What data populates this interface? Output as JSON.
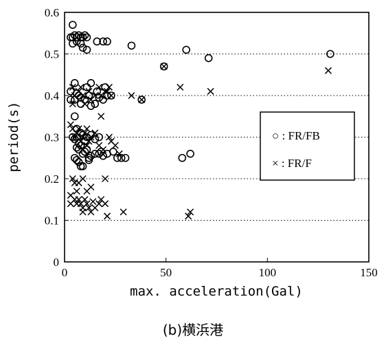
{
  "caption": "(b)横浜港",
  "chart_data": {
    "type": "scatter",
    "xlabel": "max. acceleration(Gal)",
    "ylabel": "period(s)",
    "xlim": [
      0,
      150
    ],
    "ylim": [
      0,
      0.6
    ],
    "xticks": [
      "0",
      "50",
      "100",
      "150"
    ],
    "yticks": [
      "0",
      "0.1",
      "0.2",
      "0.3",
      "0.4",
      "0.5",
      "0.6"
    ],
    "grid": "horizontal dotted at 0.1, 0.2, 0.3, 0.4, 0.5",
    "legend_position": "right",
    "series": [
      {
        "name": "○ : FR/FB",
        "marker": "circle",
        "points": [
          [
            4,
            0.57
          ],
          [
            3,
            0.54
          ],
          [
            4,
            0.54
          ],
          [
            5,
            0.545
          ],
          [
            6,
            0.54
          ],
          [
            7,
            0.545
          ],
          [
            8,
            0.54
          ],
          [
            9,
            0.54
          ],
          [
            10,
            0.545
          ],
          [
            11,
            0.54
          ],
          [
            4,
            0.525
          ],
          [
            6,
            0.53
          ],
          [
            8,
            0.525
          ],
          [
            9,
            0.515
          ],
          [
            11,
            0.51
          ],
          [
            16,
            0.53
          ],
          [
            19,
            0.53
          ],
          [
            21,
            0.53
          ],
          [
            33,
            0.52
          ],
          [
            49,
            0.47
          ],
          [
            60,
            0.51
          ],
          [
            71,
            0.49
          ],
          [
            131,
            0.5
          ],
          [
            5,
            0.43
          ],
          [
            3,
            0.41
          ],
          [
            3,
            0.39
          ],
          [
            5,
            0.39
          ],
          [
            6,
            0.405
          ],
          [
            7,
            0.4
          ],
          [
            8,
            0.395
          ],
          [
            8,
            0.38
          ],
          [
            10,
            0.39
          ],
          [
            11,
            0.42
          ],
          [
            13,
            0.43
          ],
          [
            12,
            0.4
          ],
          [
            13,
            0.375
          ],
          [
            15,
            0.38
          ],
          [
            16,
            0.41
          ],
          [
            17,
            0.395
          ],
          [
            19,
            0.39
          ],
          [
            21,
            0.4
          ],
          [
            23,
            0.4
          ],
          [
            20,
            0.42
          ],
          [
            38,
            0.39
          ],
          [
            5,
            0.35
          ],
          [
            6,
            0.32
          ],
          [
            4,
            0.3
          ],
          [
            5,
            0.295
          ],
          [
            6,
            0.3
          ],
          [
            7,
            0.285
          ],
          [
            8,
            0.31
          ],
          [
            9,
            0.305
          ],
          [
            10,
            0.29
          ],
          [
            11,
            0.3
          ],
          [
            13,
            0.305
          ],
          [
            15,
            0.295
          ],
          [
            17,
            0.3
          ],
          [
            6,
            0.275
          ],
          [
            7,
            0.27
          ],
          [
            8,
            0.28
          ],
          [
            9,
            0.26
          ],
          [
            10,
            0.265
          ],
          [
            11,
            0.27
          ],
          [
            12,
            0.25
          ],
          [
            13,
            0.255
          ],
          [
            15,
            0.26
          ],
          [
            17,
            0.26
          ],
          [
            18,
            0.265
          ],
          [
            19,
            0.255
          ],
          [
            21,
            0.26
          ],
          [
            24,
            0.265
          ],
          [
            26,
            0.25
          ],
          [
            28,
            0.25
          ],
          [
            30,
            0.25
          ],
          [
            5,
            0.25
          ],
          [
            6,
            0.245
          ],
          [
            7,
            0.24
          ],
          [
            8,
            0.23
          ],
          [
            9,
            0.23
          ],
          [
            12,
            0.245
          ],
          [
            58,
            0.25
          ],
          [
            62,
            0.26
          ]
        ]
      },
      {
        "name": "× : FR/F",
        "marker": "x",
        "points": [
          [
            130,
            0.46
          ],
          [
            57,
            0.42
          ],
          [
            72,
            0.41
          ],
          [
            49,
            0.47
          ],
          [
            33,
            0.4
          ],
          [
            38,
            0.39
          ],
          [
            4,
            0.42
          ],
          [
            5,
            0.4
          ],
          [
            7,
            0.41
          ],
          [
            8,
            0.42
          ],
          [
            9,
            0.4
          ],
          [
            10,
            0.38
          ],
          [
            12,
            0.41
          ],
          [
            13,
            0.39
          ],
          [
            15,
            0.4
          ],
          [
            17,
            0.42
          ],
          [
            18,
            0.4
          ],
          [
            20,
            0.41
          ],
          [
            22,
            0.42
          ],
          [
            23,
            0.4
          ],
          [
            21,
            0.41
          ],
          [
            18,
            0.35
          ],
          [
            4,
            0.38
          ],
          [
            3,
            0.33
          ],
          [
            4,
            0.32
          ],
          [
            5,
            0.3
          ],
          [
            6,
            0.31
          ],
          [
            7,
            0.32
          ],
          [
            8,
            0.29
          ],
          [
            9,
            0.3
          ],
          [
            10,
            0.31
          ],
          [
            11,
            0.32
          ],
          [
            12,
            0.29
          ],
          [
            13,
            0.3
          ],
          [
            15,
            0.31
          ],
          [
            17,
            0.28
          ],
          [
            19,
            0.27
          ],
          [
            22,
            0.3
          ],
          [
            23,
            0.29
          ],
          [
            25,
            0.28
          ],
          [
            27,
            0.26
          ],
          [
            9,
            0.27
          ],
          [
            11,
            0.28
          ],
          [
            4,
            0.2
          ],
          [
            5,
            0.19
          ],
          [
            7,
            0.19
          ],
          [
            9,
            0.2
          ],
          [
            11,
            0.17
          ],
          [
            13,
            0.18
          ],
          [
            20,
            0.2
          ],
          [
            3,
            0.16
          ],
          [
            6,
            0.17
          ],
          [
            3,
            0.14
          ],
          [
            5,
            0.15
          ],
          [
            6,
            0.14
          ],
          [
            7,
            0.15
          ],
          [
            8,
            0.14
          ],
          [
            9,
            0.13
          ],
          [
            10,
            0.15
          ],
          [
            11,
            0.14
          ],
          [
            12,
            0.13
          ],
          [
            13,
            0.12
          ],
          [
            15,
            0.13
          ],
          [
            17,
            0.14
          ],
          [
            18,
            0.15
          ],
          [
            20,
            0.14
          ],
          [
            21,
            0.11
          ],
          [
            29,
            0.12
          ],
          [
            61,
            0.11
          ],
          [
            62,
            0.12
          ],
          [
            9,
            0.12
          ],
          [
            14,
            0.145
          ]
        ]
      }
    ]
  }
}
